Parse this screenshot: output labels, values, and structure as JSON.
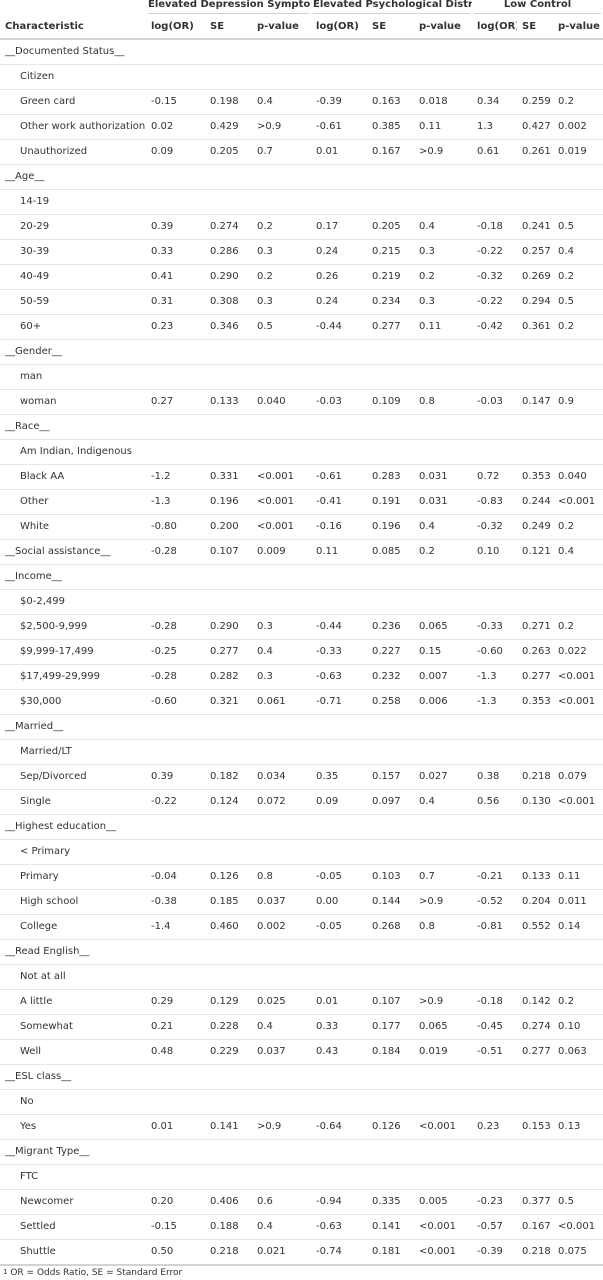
{
  "spanners": {
    "depression": "Elevated Depression Symptoms",
    "distress": "Elevated Psychological Distress",
    "control": "Low Control"
  },
  "columns": [
    "Characteristic",
    "log(OR)",
    "SE",
    "p-value",
    "log(OR)",
    "SE",
    "p-value",
    "log(OR)",
    "SE",
    "p-value"
  ],
  "rows": [
    {
      "type": "group",
      "label": "__Documented Status__",
      "cells": [
        "",
        "",
        "",
        "",
        "",
        "",
        "",
        "",
        ""
      ]
    },
    {
      "type": "level",
      "label": "Citizen",
      "cells": [
        "",
        "",
        "",
        "",
        "",
        "",
        "",
        "",
        ""
      ]
    },
    {
      "type": "level",
      "label": "Green card",
      "cells": [
        "-0.15",
        "0.198",
        "0.4",
        "-0.39",
        "0.163",
        "0.018",
        "0.34",
        "0.259",
        "0.2"
      ]
    },
    {
      "type": "level",
      "label": "Other work authorization",
      "cells": [
        "0.02",
        "0.429",
        ">0.9",
        "-0.61",
        "0.385",
        "0.11",
        "1.3",
        "0.427",
        "0.002"
      ]
    },
    {
      "type": "level",
      "label": "Unauthorized",
      "cells": [
        "0.09",
        "0.205",
        "0.7",
        "0.01",
        "0.167",
        ">0.9",
        "0.61",
        "0.261",
        "0.019"
      ]
    },
    {
      "type": "group",
      "label": "__Age__",
      "cells": [
        "",
        "",
        "",
        "",
        "",
        "",
        "",
        "",
        ""
      ]
    },
    {
      "type": "level",
      "label": "14-19",
      "cells": [
        "",
        "",
        "",
        "",
        "",
        "",
        "",
        "",
        ""
      ]
    },
    {
      "type": "level",
      "label": "20-29",
      "cells": [
        "0.39",
        "0.274",
        "0.2",
        "0.17",
        "0.205",
        "0.4",
        "-0.18",
        "0.241",
        "0.5"
      ]
    },
    {
      "type": "level",
      "label": "30-39",
      "cells": [
        "0.33",
        "0.286",
        "0.3",
        "0.24",
        "0.215",
        "0.3",
        "-0.22",
        "0.257",
        "0.4"
      ]
    },
    {
      "type": "level",
      "label": "40-49",
      "cells": [
        "0.41",
        "0.290",
        "0.2",
        "0.26",
        "0.219",
        "0.2",
        "-0.32",
        "0.269",
        "0.2"
      ]
    },
    {
      "type": "level",
      "label": "50-59",
      "cells": [
        "0.31",
        "0.308",
        "0.3",
        "0.24",
        "0.234",
        "0.3",
        "-0.22",
        "0.294",
        "0.5"
      ]
    },
    {
      "type": "level",
      "label": "60+",
      "cells": [
        "0.23",
        "0.346",
        "0.5",
        "-0.44",
        "0.277",
        "0.11",
        "-0.42",
        "0.361",
        "0.2"
      ]
    },
    {
      "type": "group",
      "label": "__Gender__",
      "cells": [
        "",
        "",
        "",
        "",
        "",
        "",
        "",
        "",
        ""
      ]
    },
    {
      "type": "level",
      "label": "man",
      "cells": [
        "",
        "",
        "",
        "",
        "",
        "",
        "",
        "",
        ""
      ]
    },
    {
      "type": "level",
      "label": "woman",
      "cells": [
        "0.27",
        "0.133",
        "0.040",
        "-0.03",
        "0.109",
        "0.8",
        "-0.03",
        "0.147",
        "0.9"
      ]
    },
    {
      "type": "group",
      "label": "__Race__",
      "cells": [
        "",
        "",
        "",
        "",
        "",
        "",
        "",
        "",
        ""
      ]
    },
    {
      "type": "level",
      "label": "Am Indian, Indigenous",
      "cells": [
        "",
        "",
        "",
        "",
        "",
        "",
        "",
        "",
        ""
      ]
    },
    {
      "type": "level",
      "label": "Black AA",
      "cells": [
        "-1.2",
        "0.331",
        "<0.001",
        "-0.61",
        "0.283",
        "0.031",
        "0.72",
        "0.353",
        "0.040"
      ]
    },
    {
      "type": "level",
      "label": "Other",
      "cells": [
        "-1.3",
        "0.196",
        "<0.001",
        "-0.41",
        "0.191",
        "0.031",
        "-0.83",
        "0.244",
        "<0.001"
      ]
    },
    {
      "type": "level",
      "label": "White",
      "cells": [
        "-0.80",
        "0.200",
        "<0.001",
        "-0.16",
        "0.196",
        "0.4",
        "-0.32",
        "0.249",
        "0.2"
      ]
    },
    {
      "type": "group",
      "label": "__Social assistance__",
      "cells": [
        "-0.28",
        "0.107",
        "0.009",
        "0.11",
        "0.085",
        "0.2",
        "0.10",
        "0.121",
        "0.4"
      ]
    },
    {
      "type": "group",
      "label": "__Income__",
      "cells": [
        "",
        "",
        "",
        "",
        "",
        "",
        "",
        "",
        ""
      ]
    },
    {
      "type": "level",
      "label": "$0-2,499",
      "cells": [
        "",
        "",
        "",
        "",
        "",
        "",
        "",
        "",
        ""
      ]
    },
    {
      "type": "level",
      "label": "$2,500-9,999",
      "cells": [
        "-0.28",
        "0.290",
        "0.3",
        "-0.44",
        "0.236",
        "0.065",
        "-0.33",
        "0.271",
        "0.2"
      ]
    },
    {
      "type": "level",
      "label": "$9,999-17,499",
      "cells": [
        "-0.25",
        "0.277",
        "0.4",
        "-0.33",
        "0.227",
        "0.15",
        "-0.60",
        "0.263",
        "0.022"
      ]
    },
    {
      "type": "level",
      "label": "$17,499-29,999",
      "cells": [
        "-0.28",
        "0.282",
        "0.3",
        "-0.63",
        "0.232",
        "0.007",
        "-1.3",
        "0.277",
        "<0.001"
      ]
    },
    {
      "type": "level",
      "label": "$30,000",
      "cells": [
        "-0.60",
        "0.321",
        "0.061",
        "-0.71",
        "0.258",
        "0.006",
        "-1.3",
        "0.353",
        "<0.001"
      ]
    },
    {
      "type": "group",
      "label": "__Married__",
      "cells": [
        "",
        "",
        "",
        "",
        "",
        "",
        "",
        "",
        ""
      ]
    },
    {
      "type": "level",
      "label": "Married/LT",
      "cells": [
        "",
        "",
        "",
        "",
        "",
        "",
        "",
        "",
        ""
      ]
    },
    {
      "type": "level",
      "label": "Sep/Divorced",
      "cells": [
        "0.39",
        "0.182",
        "0.034",
        "0.35",
        "0.157",
        "0.027",
        "0.38",
        "0.218",
        "0.079"
      ]
    },
    {
      "type": "level",
      "label": "Single",
      "cells": [
        "-0.22",
        "0.124",
        "0.072",
        "0.09",
        "0.097",
        "0.4",
        "0.56",
        "0.130",
        "<0.001"
      ]
    },
    {
      "type": "group",
      "label": "__Highest education__",
      "cells": [
        "",
        "",
        "",
        "",
        "",
        "",
        "",
        "",
        ""
      ]
    },
    {
      "type": "level",
      "label": "< Primary",
      "cells": [
        "",
        "",
        "",
        "",
        "",
        "",
        "",
        "",
        ""
      ]
    },
    {
      "type": "level",
      "label": "Primary",
      "cells": [
        "-0.04",
        "0.126",
        "0.8",
        "-0.05",
        "0.103",
        "0.7",
        "-0.21",
        "0.133",
        "0.11"
      ]
    },
    {
      "type": "level",
      "label": "High school",
      "cells": [
        "-0.38",
        "0.185",
        "0.037",
        "0.00",
        "0.144",
        ">0.9",
        "-0.52",
        "0.204",
        "0.011"
      ]
    },
    {
      "type": "level",
      "label": "College",
      "cells": [
        "-1.4",
        "0.460",
        "0.002",
        "-0.05",
        "0.268",
        "0.8",
        "-0.81",
        "0.552",
        "0.14"
      ]
    },
    {
      "type": "group",
      "label": "__Read English__",
      "cells": [
        "",
        "",
        "",
        "",
        "",
        "",
        "",
        "",
        ""
      ]
    },
    {
      "type": "level",
      "label": "Not at all",
      "cells": [
        "",
        "",
        "",
        "",
        "",
        "",
        "",
        "",
        ""
      ]
    },
    {
      "type": "level",
      "label": "A little",
      "cells": [
        "0.29",
        "0.129",
        "0.025",
        "0.01",
        "0.107",
        ">0.9",
        "-0.18",
        "0.142",
        "0.2"
      ]
    },
    {
      "type": "level",
      "label": "Somewhat",
      "cells": [
        "0.21",
        "0.228",
        "0.4",
        "0.33",
        "0.177",
        "0.065",
        "-0.45",
        "0.274",
        "0.10"
      ]
    },
    {
      "type": "level",
      "label": "Well",
      "cells": [
        "0.48",
        "0.229",
        "0.037",
        "0.43",
        "0.184",
        "0.019",
        "-0.51",
        "0.277",
        "0.063"
      ]
    },
    {
      "type": "group",
      "label": "__ESL class__",
      "cells": [
        "",
        "",
        "",
        "",
        "",
        "",
        "",
        "",
        ""
      ]
    },
    {
      "type": "level",
      "label": "No",
      "cells": [
        "",
        "",
        "",
        "",
        "",
        "",
        "",
        "",
        ""
      ]
    },
    {
      "type": "level",
      "label": "Yes",
      "cells": [
        "0.01",
        "0.141",
        ">0.9",
        "-0.64",
        "0.126",
        "<0.001",
        "0.23",
        "0.153",
        "0.13"
      ]
    },
    {
      "type": "group",
      "label": "__Migrant Type__",
      "cells": [
        "",
        "",
        "",
        "",
        "",
        "",
        "",
        "",
        ""
      ]
    },
    {
      "type": "level",
      "label": "FTC",
      "cells": [
        "",
        "",
        "",
        "",
        "",
        "",
        "",
        "",
        ""
      ]
    },
    {
      "type": "level",
      "label": "Newcomer",
      "cells": [
        "0.20",
        "0.406",
        "0.6",
        "-0.94",
        "0.335",
        "0.005",
        "-0.23",
        "0.377",
        "0.5"
      ]
    },
    {
      "type": "level",
      "label": "Settled",
      "cells": [
        "-0.15",
        "0.188",
        "0.4",
        "-0.63",
        "0.141",
        "<0.001",
        "-0.57",
        "0.167",
        "<0.001"
      ]
    },
    {
      "type": "level",
      "label": "Shuttle",
      "cells": [
        "0.50",
        "0.218",
        "0.021",
        "-0.74",
        "0.181",
        "<0.001",
        "-0.39",
        "0.218",
        "0.075"
      ]
    }
  ],
  "footnote": {
    "marker": "1",
    "text": "OR = Odds Ratio, SE = Standard Error"
  }
}
